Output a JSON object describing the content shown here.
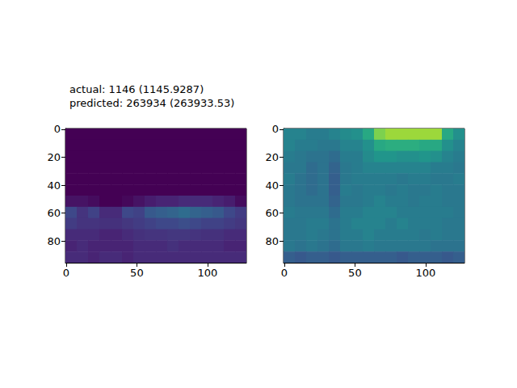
{
  "chart_data": [
    {
      "type": "heatmap",
      "title": "actual: 1146 (1145.9287)\npredicted: 263934 (263933.53)",
      "color": "viridis",
      "color_range": [
        0,
        1
      ],
      "xlim": [
        -0.5,
        127.5
      ],
      "ylim": [
        95.5,
        -0.5
      ],
      "xticks": [
        0,
        50,
        100
      ],
      "yticks": [
        0,
        20,
        40,
        60,
        80
      ],
      "x": [
        3.5,
        11.5,
        19.5,
        27.5,
        35.5,
        43.5,
        51.5,
        59.5,
        67.5,
        75.5,
        83.5,
        91.5,
        99.5,
        107.5,
        115.5,
        123.5
      ],
      "y": [
        3.5,
        11.5,
        19.5,
        27.5,
        35.5,
        43.5,
        51.5,
        59.5,
        67.5,
        75.5,
        83.5,
        91.5
      ],
      "cells": [
        [
          0,
          0,
          0,
          0,
          0,
          0,
          0,
          0,
          0,
          0,
          0,
          0,
          0,
          0,
          0,
          0
        ],
        [
          0,
          0,
          0,
          0,
          0,
          0,
          0,
          0,
          0,
          0,
          0,
          0,
          0,
          0,
          0,
          0
        ],
        [
          0,
          0,
          0,
          0,
          0,
          0,
          0,
          0,
          0,
          0,
          0,
          0,
          0,
          0,
          0,
          0
        ],
        [
          0,
          0,
          0,
          0,
          0,
          0,
          0,
          0,
          0,
          0,
          0,
          0,
          0,
          0,
          0,
          0
        ],
        [
          0,
          0,
          0,
          0,
          0,
          0,
          0,
          0,
          0,
          0,
          0,
          0,
          0,
          0,
          0,
          0
        ],
        [
          0,
          0,
          0,
          0,
          0,
          0,
          0,
          0,
          0,
          0,
          0,
          0,
          0,
          0,
          0,
          0
        ],
        [
          0.05,
          0.05,
          0.03,
          0,
          0,
          0.02,
          0.05,
          0.08,
          0.1,
          0.1,
          0.12,
          0.12,
          0.12,
          0.1,
          0.08,
          0.03
        ],
        [
          0.22,
          0.15,
          0.2,
          0.12,
          0.12,
          0.22,
          0.2,
          0.28,
          0.3,
          0.32,
          0.35,
          0.32,
          0.3,
          0.28,
          0.22,
          0.18
        ],
        [
          0.18,
          0.15,
          0.15,
          0.14,
          0.14,
          0.16,
          0.18,
          0.2,
          0.22,
          0.22,
          0.24,
          0.22,
          0.2,
          0.2,
          0.18,
          0.16
        ],
        [
          0.12,
          0.12,
          0.12,
          0.1,
          0.1,
          0.12,
          0.14,
          0.15,
          0.15,
          0.16,
          0.16,
          0.15,
          0.14,
          0.14,
          0.12,
          0.12
        ],
        [
          0.1,
          0.12,
          0.1,
          0.1,
          0.1,
          0.1,
          0.12,
          0.12,
          0.12,
          0.14,
          0.12,
          0.12,
          0.12,
          0.12,
          0.1,
          0.1
        ],
        [
          0.12,
          0.12,
          0.1,
          0.12,
          0.12,
          0.1,
          0.12,
          0.12,
          0.12,
          0.12,
          0.12,
          0.12,
          0.12,
          0.12,
          0.12,
          0.12
        ]
      ]
    },
    {
      "type": "heatmap",
      "color": "viridis",
      "color_range": [
        0,
        1
      ],
      "xlim": [
        -0.5,
        127.5
      ],
      "ylim": [
        95.5,
        -0.5
      ],
      "xticks": [
        0,
        50,
        100
      ],
      "yticks": [
        0,
        20,
        40,
        60,
        80
      ],
      "x": [
        3.5,
        11.5,
        19.5,
        27.5,
        35.5,
        43.5,
        51.5,
        59.5,
        67.5,
        75.5,
        83.5,
        91.5,
        99.5,
        107.5,
        115.5,
        123.5
      ],
      "y": [
        3.5,
        11.5,
        19.5,
        27.5,
        35.5,
        43.5,
        51.5,
        59.5,
        67.5,
        75.5,
        83.5,
        91.5
      ],
      "cells": [
        [
          0.45,
          0.45,
          0.42,
          0.42,
          0.45,
          0.48,
          0.5,
          0.6,
          0.8,
          0.85,
          0.85,
          0.85,
          0.85,
          0.85,
          0.6,
          0.5
        ],
        [
          0.45,
          0.42,
          0.42,
          0.4,
          0.4,
          0.45,
          0.45,
          0.5,
          0.6,
          0.62,
          0.62,
          0.62,
          0.6,
          0.6,
          0.5,
          0.45
        ],
        [
          0.42,
          0.4,
          0.38,
          0.38,
          0.35,
          0.42,
          0.42,
          0.48,
          0.52,
          0.52,
          0.5,
          0.5,
          0.52,
          0.5,
          0.45,
          0.42
        ],
        [
          0.4,
          0.4,
          0.35,
          0.38,
          0.32,
          0.4,
          0.42,
          0.45,
          0.45,
          0.45,
          0.45,
          0.45,
          0.45,
          0.42,
          0.42,
          0.4
        ],
        [
          0.42,
          0.38,
          0.35,
          0.38,
          0.3,
          0.4,
          0.42,
          0.42,
          0.42,
          0.42,
          0.4,
          0.42,
          0.42,
          0.4,
          0.4,
          0.42
        ],
        [
          0.4,
          0.38,
          0.35,
          0.38,
          0.3,
          0.42,
          0.4,
          0.42,
          0.42,
          0.4,
          0.42,
          0.4,
          0.4,
          0.42,
          0.4,
          0.4
        ],
        [
          0.4,
          0.38,
          0.38,
          0.38,
          0.32,
          0.4,
          0.4,
          0.42,
          0.45,
          0.42,
          0.42,
          0.4,
          0.42,
          0.42,
          0.4,
          0.4
        ],
        [
          0.42,
          0.4,
          0.4,
          0.4,
          0.35,
          0.42,
          0.42,
          0.45,
          0.45,
          0.45,
          0.42,
          0.42,
          0.42,
          0.42,
          0.42,
          0.4
        ],
        [
          0.4,
          0.4,
          0.42,
          0.42,
          0.38,
          0.42,
          0.45,
          0.45,
          0.45,
          0.42,
          0.45,
          0.42,
          0.42,
          0.42,
          0.4,
          0.4
        ],
        [
          0.4,
          0.4,
          0.42,
          0.4,
          0.38,
          0.42,
          0.42,
          0.45,
          0.42,
          0.42,
          0.42,
          0.42,
          0.4,
          0.42,
          0.4,
          0.4
        ],
        [
          0.4,
          0.38,
          0.4,
          0.38,
          0.35,
          0.4,
          0.4,
          0.42,
          0.4,
          0.4,
          0.4,
          0.4,
          0.4,
          0.38,
          0.38,
          0.38
        ],
        [
          0.3,
          0.28,
          0.3,
          0.3,
          0.28,
          0.3,
          0.3,
          0.3,
          0.3,
          0.3,
          0.28,
          0.3,
          0.3,
          0.3,
          0.28,
          0.3
        ]
      ]
    }
  ]
}
